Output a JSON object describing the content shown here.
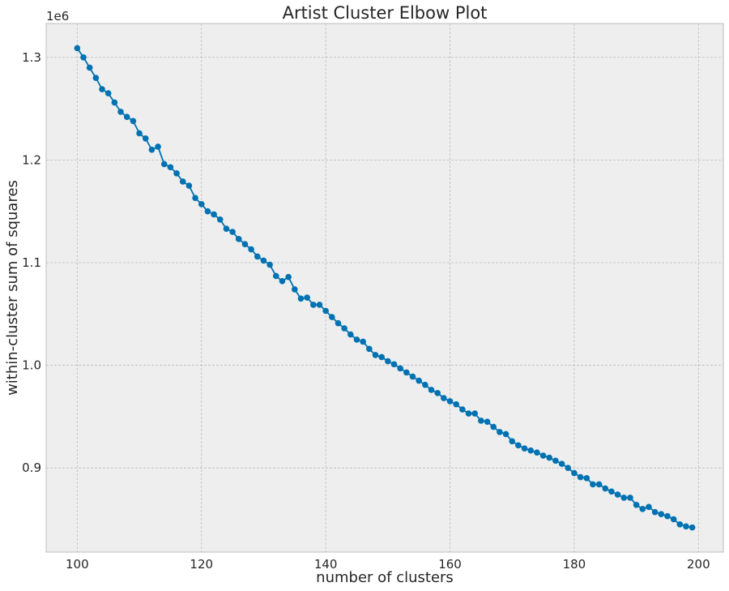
{
  "chart_data": {
    "type": "line",
    "title": "Artist Cluster Elbow Plot",
    "xlabel": "number of clusters",
    "ylabel": "within-cluster sum of squares",
    "y_offset_label": "1e6",
    "xlim": [
      95,
      204
    ],
    "ylim": [
      0.818,
      1.333
    ],
    "x_ticks": [
      100,
      120,
      140,
      160,
      180,
      200
    ],
    "x_tick_labels": [
      "100",
      "120",
      "140",
      "160",
      "180",
      "200"
    ],
    "y_ticks": [
      0.9,
      1.0,
      1.1,
      1.2,
      1.3
    ],
    "y_tick_labels": [
      "0.9",
      "1.0",
      "1.1",
      "1.2",
      "1.3"
    ],
    "grid": true,
    "marker": "circle",
    "colors": {
      "series": "#0072B2",
      "background": "#EEEEEE",
      "grid": "#BCBCBC",
      "frame": "#BCBCBC"
    },
    "series": [
      {
        "x": [
          100,
          101,
          102,
          103,
          104,
          105,
          106,
          107,
          108,
          109,
          110,
          111,
          112,
          113,
          114,
          115,
          116,
          117,
          118,
          119,
          120,
          121,
          122,
          123,
          124,
          125,
          126,
          127,
          128,
          129,
          130,
          131,
          132,
          133,
          134,
          135,
          136,
          137,
          138,
          139,
          140,
          141,
          142,
          143,
          144,
          145,
          146,
          147,
          148,
          149,
          150,
          151,
          152,
          153,
          154,
          155,
          156,
          157,
          158,
          159,
          160,
          161,
          162,
          163,
          164,
          165,
          166,
          167,
          168,
          169,
          170,
          171,
          172,
          173,
          174,
          175,
          176,
          177,
          178,
          179,
          180,
          181,
          182,
          183,
          184,
          185,
          186,
          187,
          188,
          189,
          190,
          191,
          192,
          193,
          194,
          195,
          196,
          197,
          198,
          199
        ],
        "y": [
          1.309,
          1.3,
          1.29,
          1.28,
          1.269,
          1.265,
          1.256,
          1.247,
          1.242,
          1.238,
          1.226,
          1.221,
          1.21,
          1.213,
          1.196,
          1.193,
          1.187,
          1.179,
          1.175,
          1.163,
          1.157,
          1.15,
          1.147,
          1.142,
          1.133,
          1.13,
          1.123,
          1.118,
          1.113,
          1.106,
          1.102,
          1.098,
          1.087,
          1.082,
          1.086,
          1.074,
          1.065,
          1.066,
          1.059,
          1.059,
          1.053,
          1.047,
          1.041,
          1.036,
          1.03,
          1.025,
          1.023,
          1.016,
          1.01,
          1.008,
          1.004,
          1.001,
          0.997,
          0.993,
          0.989,
          0.985,
          0.981,
          0.976,
          0.973,
          0.968,
          0.965,
          0.962,
          0.957,
          0.953,
          0.953,
          0.946,
          0.945,
          0.94,
          0.935,
          0.933,
          0.926,
          0.922,
          0.919,
          0.917,
          0.915,
          0.912,
          0.91,
          0.907,
          0.904,
          0.9,
          0.895,
          0.891,
          0.89,
          0.884,
          0.884,
          0.88,
          0.877,
          0.874,
          0.871,
          0.871,
          0.864,
          0.86,
          0.862,
          0.857,
          0.855,
          0.853,
          0.85,
          0.845,
          0.843,
          0.842
        ]
      }
    ]
  }
}
